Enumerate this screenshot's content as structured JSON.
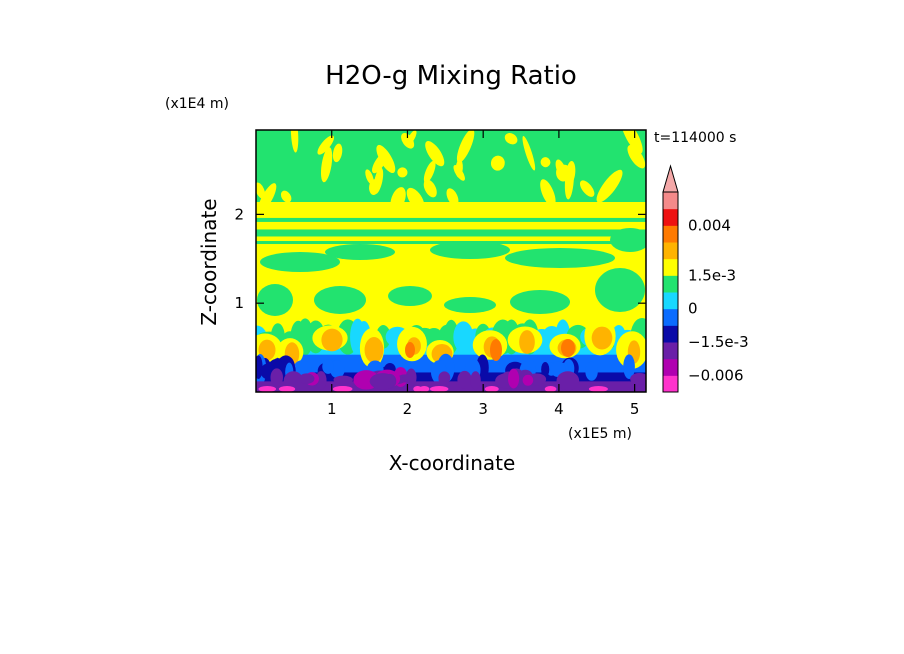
{
  "chart_data": {
    "type": "heatmap",
    "title": "H2O-g Mixing Ratio",
    "xlabel": "X-coordinate",
    "ylabel": "Z-coordinate",
    "x_multiplier": "(x1E5 m)",
    "y_multiplier": "(x1E4 m)",
    "time_label": "t=114000 s",
    "xlim": [
      0,
      5.15
    ],
    "ylim": [
      0,
      2.95
    ],
    "x_ticks": [
      1,
      2,
      3,
      4,
      5
    ],
    "y_ticks": [
      1,
      2
    ],
    "colorbar": {
      "levels": [
        -0.009,
        -0.006,
        -0.003,
        -0.0015,
        -0.00075,
        0,
        0.00075,
        0.0015,
        0.00225,
        0.003,
        0.004,
        0.006
      ],
      "colors": [
        "#ff33cc",
        "#b000b0",
        "#6a1fa8",
        "#0a0aa8",
        "#0b6cff",
        "#18d8ff",
        "#22e36f",
        "#ffff00",
        "#ffb300",
        "#ff7a00",
        "#ee1111",
        "#f48a8a",
        "#f4a8a8"
      ],
      "tick_values": [
        0.004,
        0.0015,
        0,
        -0.0015,
        -0.006
      ],
      "tick_labels": [
        "0.004",
        "1.5e-3",
        "0",
        "−1.5e-3",
        "−0.006"
      ]
    }
  }
}
